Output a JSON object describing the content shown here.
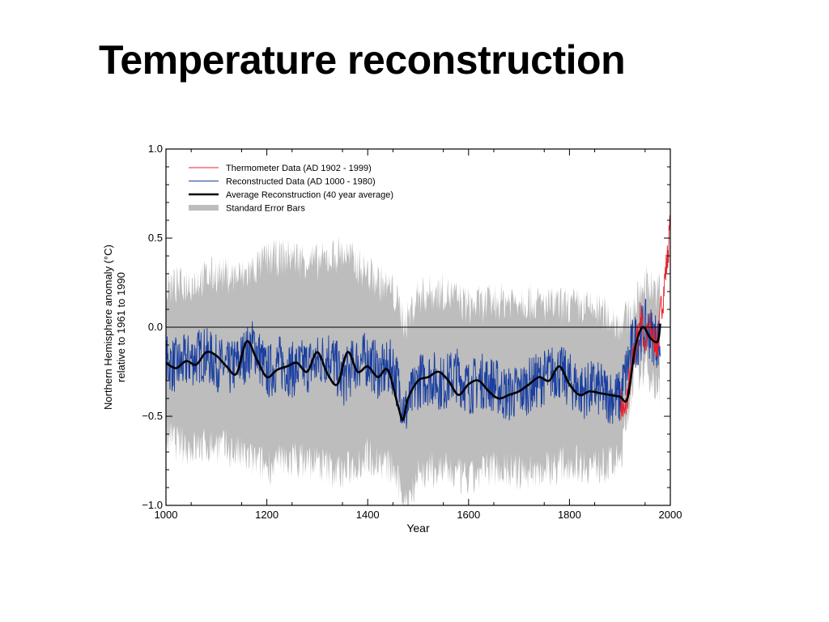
{
  "slide": {
    "title": "Temperature reconstruction"
  },
  "colors": {
    "thermometer": "#e8202a",
    "reconstructed": "#1a3fa0",
    "average": "#000000",
    "error_bars": "#bdbdbd"
  },
  "chart_data": {
    "type": "line",
    "title": "",
    "xlabel": "Year",
    "ylabel": "Northern Hemisphere anomaly (°C) relative to 1961 to 1990",
    "ylabel_lines": [
      "Northern Hemisphere anomaly (°C)",
      "relative to 1961 to 1990"
    ],
    "xlim": [
      1000,
      2000
    ],
    "ylim": [
      -1.0,
      1.0
    ],
    "xticks": [
      1000,
      1200,
      1400,
      1600,
      1800,
      2000
    ],
    "xtick_labels": [
      "1000",
      "1200",
      "1400",
      "1600",
      "1800",
      "2000"
    ],
    "yticks": [
      -1.0,
      -0.5,
      0.0,
      0.5,
      1.0
    ],
    "ytick_labels": [
      "−1.0",
      "−0.5",
      "0.0",
      "0.5",
      "1.0"
    ],
    "grid": false,
    "zero_line": true,
    "legend_position": "top-left",
    "series": [
      {
        "name": "Thermometer Data (AD 1902 - 1999)",
        "style": "thin-line",
        "x": [
          1902,
          1906,
          1910,
          1914,
          1918,
          1922,
          1926,
          1930,
          1934,
          1938,
          1942,
          1946,
          1950,
          1954,
          1958,
          1962,
          1966,
          1970,
          1974,
          1978,
          1982,
          1986,
          1990,
          1994,
          1999
        ],
        "values": [
          -0.42,
          -0.46,
          -0.5,
          -0.4,
          -0.32,
          -0.28,
          -0.18,
          -0.12,
          -0.08,
          0.02,
          0.08,
          -0.04,
          -0.1,
          -0.06,
          0.0,
          -0.02,
          -0.08,
          -0.05,
          -0.12,
          -0.02,
          0.12,
          0.18,
          0.3,
          0.38,
          0.55
        ]
      },
      {
        "name": "Reconstructed Data (AD 1000 - 1980)",
        "style": "thin-line",
        "x": [
          1000,
          1025,
          1050,
          1075,
          1100,
          1125,
          1150,
          1175,
          1200,
          1225,
          1250,
          1275,
          1300,
          1325,
          1350,
          1375,
          1400,
          1425,
          1450,
          1475,
          1500,
          1525,
          1550,
          1575,
          1600,
          1625,
          1650,
          1675,
          1700,
          1725,
          1750,
          1775,
          1800,
          1825,
          1850,
          1875,
          1900,
          1925,
          1950,
          1975,
          1980
        ],
        "values": [
          -0.2,
          -0.22,
          -0.18,
          -0.15,
          -0.2,
          -0.24,
          -0.18,
          -0.1,
          -0.26,
          -0.2,
          -0.24,
          -0.22,
          -0.2,
          -0.15,
          -0.3,
          -0.2,
          -0.18,
          -0.26,
          -0.22,
          -0.48,
          -0.3,
          -0.28,
          -0.32,
          -0.26,
          -0.34,
          -0.3,
          -0.32,
          -0.38,
          -0.36,
          -0.32,
          -0.28,
          -0.24,
          -0.3,
          -0.36,
          -0.34,
          -0.38,
          -0.4,
          -0.1,
          0.0,
          -0.08,
          -0.1
        ]
      },
      {
        "name": "Average Reconstruction (40 year average)",
        "style": "thick-line",
        "x": [
          1000,
          1020,
          1040,
          1060,
          1080,
          1100,
          1120,
          1140,
          1160,
          1180,
          1200,
          1220,
          1240,
          1260,
          1280,
          1300,
          1320,
          1340,
          1360,
          1380,
          1400,
          1420,
          1440,
          1460,
          1470,
          1480,
          1500,
          1520,
          1540,
          1560,
          1580,
          1600,
          1620,
          1640,
          1660,
          1680,
          1700,
          1720,
          1740,
          1760,
          1780,
          1800,
          1820,
          1840,
          1860,
          1880,
          1900,
          1915,
          1930,
          1945,
          1960,
          1975,
          1980
        ],
        "values": [
          -0.2,
          -0.23,
          -0.19,
          -0.21,
          -0.14,
          -0.16,
          -0.22,
          -0.26,
          -0.08,
          -0.18,
          -0.28,
          -0.24,
          -0.22,
          -0.2,
          -0.25,
          -0.14,
          -0.26,
          -0.32,
          -0.14,
          -0.25,
          -0.22,
          -0.28,
          -0.24,
          -0.44,
          -0.52,
          -0.4,
          -0.3,
          -0.28,
          -0.25,
          -0.3,
          -0.38,
          -0.32,
          -0.3,
          -0.36,
          -0.4,
          -0.38,
          -0.36,
          -0.32,
          -0.28,
          -0.3,
          -0.22,
          -0.32,
          -0.38,
          -0.36,
          -0.37,
          -0.38,
          -0.39,
          -0.4,
          -0.12,
          0.0,
          -0.06,
          -0.08,
          0.02
        ]
      },
      {
        "name": "Standard Error Bars",
        "style": "band",
        "x": [
          1000,
          1050,
          1100,
          1150,
          1200,
          1250,
          1300,
          1350,
          1400,
          1450,
          1475,
          1500,
          1550,
          1600,
          1650,
          1700,
          1750,
          1800,
          1850,
          1900,
          1925,
          1950,
          1975,
          1980
        ],
        "upper": [
          0.22,
          0.25,
          0.3,
          0.28,
          0.38,
          0.4,
          0.36,
          0.42,
          0.3,
          0.2,
          0.02,
          0.18,
          0.2,
          0.12,
          0.14,
          0.16,
          0.12,
          0.12,
          0.1,
          0.02,
          0.08,
          0.26,
          0.2,
          0.22
        ],
        "lower": [
          -0.62,
          -0.68,
          -0.66,
          -0.72,
          -0.78,
          -0.74,
          -0.76,
          -0.82,
          -0.72,
          -0.8,
          -1.0,
          -0.82,
          -0.8,
          -0.86,
          -0.78,
          -0.82,
          -0.8,
          -0.76,
          -0.78,
          -0.76,
          -0.3,
          -0.22,
          -0.34,
          -0.4
        ]
      }
    ]
  }
}
